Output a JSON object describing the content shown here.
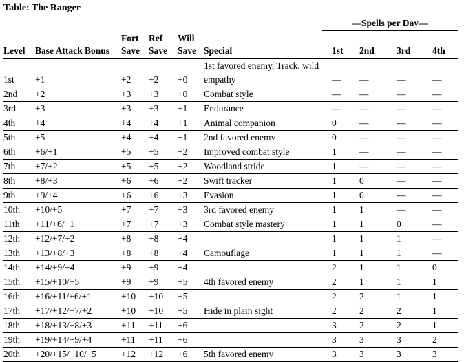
{
  "title": "Table: The Ranger",
  "header": {
    "spells_per_day": "—Spells per Day—",
    "row1": [
      "",
      "",
      "Fort",
      "Ref",
      "Will",
      "",
      "",
      "",
      "",
      ""
    ],
    "row2": [
      "Level",
      "Base Attack Bonus",
      "Save",
      "Save",
      "Save",
      "Special",
      "1st",
      "2nd",
      "3rd",
      "4th"
    ]
  },
  "rows": [
    [
      "1st",
      "+1",
      "+2",
      "+2",
      "+0",
      "1st favored enemy, Track, wild empathy",
      "—",
      "—",
      "—",
      "—"
    ],
    [
      "2nd",
      "+2",
      "+3",
      "+3",
      "+0",
      "Combat style",
      "—",
      "—",
      "—",
      "—"
    ],
    [
      "3rd",
      "+3",
      "+3",
      "+3",
      "+1",
      "Endurance",
      "—",
      "—",
      "—",
      "—"
    ],
    [
      "4th",
      "+4",
      "+4",
      "+4",
      "+1",
      "Animal companion",
      "0",
      "—",
      "—",
      "—"
    ],
    [
      "5th",
      "+5",
      "+4",
      "+4",
      "+1",
      "2nd favored enemy",
      "0",
      "—",
      "—",
      "—"
    ],
    [
      "6th",
      "+6/+1",
      "+5",
      "+5",
      "+2",
      "Improved combat style",
      "1",
      "—",
      "—",
      "—"
    ],
    [
      "7th",
      "+7/+2",
      "+5",
      "+5",
      "+2",
      "Woodland stride",
      "1",
      "—",
      "—",
      "—"
    ],
    [
      "8th",
      "+8/+3",
      "+6",
      "+6",
      "+2",
      "Swift tracker",
      "1",
      "0",
      "—",
      "—"
    ],
    [
      "9th",
      "+9/+4",
      "+6",
      "+6",
      "+3",
      "Evasion",
      "1",
      "0",
      "—",
      "—"
    ],
    [
      "10th",
      "+10/+5",
      "+7",
      "+7",
      "+3",
      "3rd favored enemy",
      "1",
      "1",
      "—",
      "—"
    ],
    [
      "11th",
      "+11/+6/+1",
      "+7",
      "+7",
      "+3",
      "Combat style mastery",
      "1",
      "1",
      "0",
      "—"
    ],
    [
      "12th",
      "+12/+7/+2",
      "+8",
      "+8",
      "+4",
      "",
      "1",
      "1",
      "1",
      "—"
    ],
    [
      "13th",
      "+13/+8/+3",
      "+8",
      "+8",
      "+4",
      "Camouflage",
      "1",
      "1",
      "1",
      "—"
    ],
    [
      "14th",
      "+14/+9/+4",
      "+9",
      "+9",
      "+4",
      "",
      "2",
      "1",
      "1",
      "0"
    ],
    [
      "15th",
      "+15/+10/+5",
      "+9",
      "+9",
      "+5",
      "4th favored enemy",
      "2",
      "1",
      "1",
      "1"
    ],
    [
      "16th",
      "+16/+11/+6/+1",
      "+10",
      "+10",
      "+5",
      "",
      "2",
      "2",
      "1",
      "1"
    ],
    [
      "17th",
      "+17/+12/+7/+2",
      "+10",
      "+10",
      "+5",
      "Hide in plain sight",
      "2",
      "2",
      "2",
      "1"
    ],
    [
      "18th",
      "+18/+13/+8/+3",
      "+11",
      "+11",
      "+6",
      "",
      "3",
      "2",
      "2",
      "1"
    ],
    [
      "19th",
      "+19/+14/+9/+4",
      "+11",
      "+11",
      "+6",
      "",
      "3",
      "3",
      "3",
      "2"
    ],
    [
      "20th",
      "+20/+15/+10/+5",
      "+12",
      "+12",
      "+6",
      "5th favored enemy",
      "3",
      "3",
      "3",
      "3"
    ]
  ]
}
